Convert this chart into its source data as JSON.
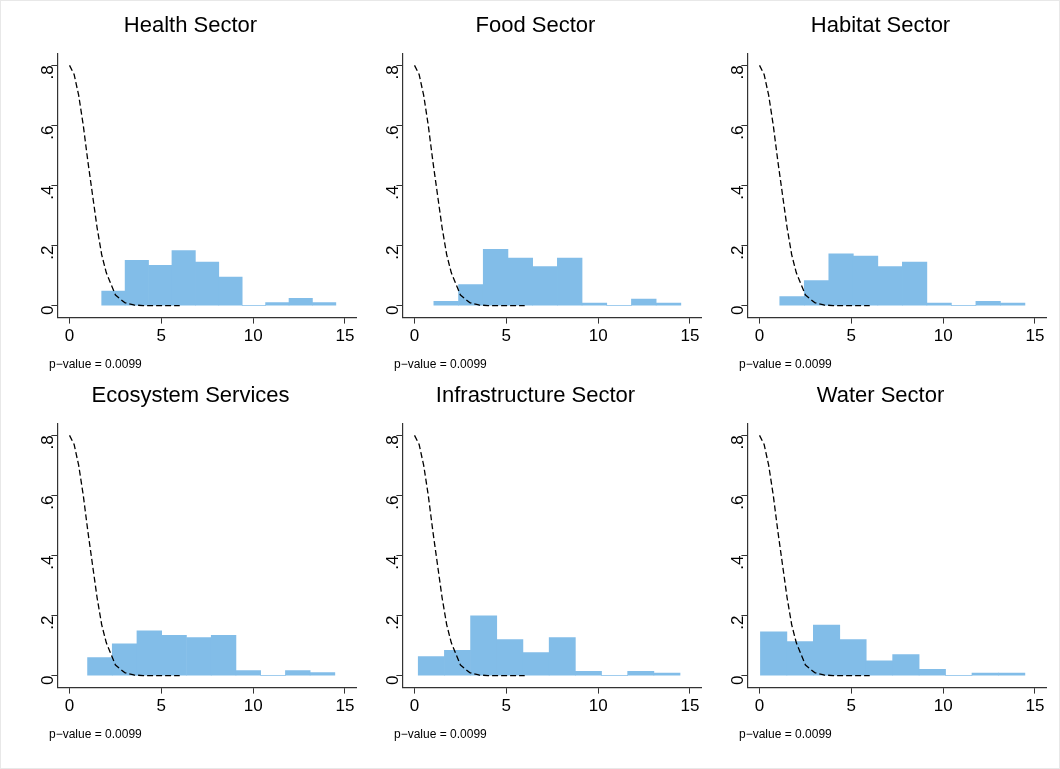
{
  "chart_data": [
    {
      "type": "histogram",
      "title": "Health Sector",
      "bins": [
        1.75,
        3.03,
        4.3,
        5.58,
        6.85,
        8.13,
        9.4,
        10.68,
        11.95,
        13.23,
        14.5
      ],
      "values": [
        0.048,
        0.151,
        0.134,
        0.183,
        0.145,
        0.095,
        0,
        0.01,
        0.024,
        0.01
      ],
      "color": "#82bde8",
      "series": [
        {
          "type": "line",
          "color": "#000000",
          "line_style": "dashed",
          "x": [
            0,
            0.25,
            0.5,
            0.75,
            1,
            1.25,
            1.5,
            1.75,
            2,
            2.5,
            3,
            3.5,
            4,
            5,
            6
          ],
          "values": [
            0.8,
            0.77,
            0.7,
            0.6,
            0.48,
            0.37,
            0.26,
            0.17,
            0.11,
            0.035,
            0.01,
            0.002,
            0,
            0,
            0
          ]
        }
      ],
      "annotations": [
        "p−value = 0.0099"
      ],
      "xlim": [
        -0.66,
        15.6
      ],
      "ylim": [
        -0.04,
        0.84
      ],
      "xticks": [
        0,
        5,
        10,
        15
      ],
      "yticks": [
        {
          "value": 0,
          "label": "0"
        },
        {
          "value": 0.2,
          "label": ".2"
        },
        {
          "value": 0.4,
          "label": ".4"
        },
        {
          "value": 0.6,
          "label": ".6"
        },
        {
          "value": 0.8,
          "label": ".8"
        }
      ]
    },
    {
      "type": "histogram",
      "title": "Food Sector",
      "bins": [
        1.05,
        2.4,
        3.74,
        5.09,
        6.43,
        7.78,
        9.12,
        10.47,
        11.81,
        13.16,
        14.5
      ],
      "values": [
        0.014,
        0.07,
        0.187,
        0.158,
        0.13,
        0.158,
        0.008,
        0,
        0.022,
        0.008
      ],
      "color": "#82bde8",
      "series": [
        {
          "type": "line",
          "color": "#000000",
          "line_style": "dashed",
          "x": [
            0,
            0.25,
            0.5,
            0.75,
            1,
            1.25,
            1.5,
            1.75,
            2,
            2.5,
            3,
            3.5,
            4,
            5,
            6
          ],
          "values": [
            0.8,
            0.77,
            0.7,
            0.6,
            0.48,
            0.37,
            0.26,
            0.17,
            0.11,
            0.035,
            0.01,
            0.002,
            0,
            0,
            0
          ]
        }
      ],
      "annotations": [
        "p−value = 0.0099"
      ],
      "xlim": [
        -0.66,
        15.6
      ],
      "ylim": [
        -0.04,
        0.84
      ],
      "xticks": [
        0,
        5,
        10,
        15
      ],
      "yticks": [
        {
          "value": 0,
          "label": "0"
        },
        {
          "value": 0.2,
          "label": ".2"
        },
        {
          "value": 0.4,
          "label": ".4"
        },
        {
          "value": 0.6,
          "label": ".6"
        },
        {
          "value": 0.8,
          "label": ".8"
        }
      ]
    },
    {
      "type": "histogram",
      "title": "Habitat Sector",
      "bins": [
        1.1,
        2.44,
        3.77,
        5.11,
        6.44,
        7.78,
        9.11,
        10.45,
        11.78,
        13.12,
        14.45
      ],
      "values": [
        0.03,
        0.083,
        0.172,
        0.165,
        0.13,
        0.145,
        0.008,
        0,
        0.014,
        0.008
      ],
      "color": "#82bde8",
      "series": [
        {
          "type": "line",
          "color": "#000000",
          "line_style": "dashed",
          "x": [
            0,
            0.25,
            0.5,
            0.75,
            1,
            1.25,
            1.5,
            1.75,
            2,
            2.5,
            3,
            3.5,
            4,
            5,
            6
          ],
          "values": [
            0.8,
            0.77,
            0.7,
            0.6,
            0.48,
            0.37,
            0.26,
            0.17,
            0.11,
            0.035,
            0.01,
            0.002,
            0,
            0,
            0
          ]
        }
      ],
      "annotations": [
        "p−value = 0.0099"
      ],
      "xlim": [
        -0.66,
        15.6
      ],
      "ylim": [
        -0.04,
        0.84
      ],
      "xticks": [
        0,
        5,
        10,
        15
      ],
      "yticks": [
        {
          "value": 0,
          "label": "0"
        },
        {
          "value": 0.2,
          "label": ".2"
        },
        {
          "value": 0.4,
          "label": ".4"
        },
        {
          "value": 0.6,
          "label": ".6"
        },
        {
          "value": 0.8,
          "label": ".8"
        }
      ]
    },
    {
      "type": "histogram",
      "title": "Ecosystem Services",
      "bins": [
        0.98,
        2.33,
        3.67,
        5.02,
        6.37,
        7.72,
        9.06,
        10.41,
        11.76,
        13.1,
        14.45
      ],
      "values": [
        0.06,
        0.106,
        0.149,
        0.134,
        0.127,
        0.134,
        0.017,
        0,
        0.017,
        0.01
      ],
      "color": "#82bde8",
      "series": [
        {
          "type": "line",
          "color": "#000000",
          "line_style": "dashed",
          "x": [
            0,
            0.25,
            0.5,
            0.75,
            1,
            1.25,
            1.5,
            1.75,
            2,
            2.5,
            3,
            3.5,
            4,
            5,
            6
          ],
          "values": [
            0.8,
            0.77,
            0.7,
            0.6,
            0.48,
            0.37,
            0.26,
            0.17,
            0.11,
            0.035,
            0.01,
            0.002,
            0,
            0,
            0
          ]
        }
      ],
      "annotations": [
        "p−value = 0.0099"
      ],
      "xlim": [
        -0.66,
        15.6
      ],
      "ylim": [
        -0.04,
        0.84
      ],
      "xticks": [
        0,
        5,
        10,
        15
      ],
      "yticks": [
        {
          "value": 0,
          "label": "0"
        },
        {
          "value": 0.2,
          "label": ".2"
        },
        {
          "value": 0.4,
          "label": ".4"
        },
        {
          "value": 0.6,
          "label": ".6"
        },
        {
          "value": 0.8,
          "label": ".8"
        }
      ]
    },
    {
      "type": "histogram",
      "title": "Infrastructure Sector",
      "bins": [
        0.2,
        1.63,
        3.05,
        4.48,
        5.9,
        7.33,
        8.76,
        10.18,
        11.61,
        13.03,
        14.46
      ],
      "values": [
        0.063,
        0.084,
        0.199,
        0.12,
        0.077,
        0.127,
        0.014,
        0,
        0.014,
        0.008
      ],
      "color": "#82bde8",
      "series": [
        {
          "type": "line",
          "color": "#000000",
          "line_style": "dashed",
          "x": [
            0,
            0.25,
            0.5,
            0.75,
            1,
            1.25,
            1.5,
            1.75,
            2,
            2.5,
            3,
            3.5,
            4,
            5,
            6
          ],
          "values": [
            0.8,
            0.77,
            0.7,
            0.6,
            0.48,
            0.37,
            0.26,
            0.17,
            0.11,
            0.035,
            0.01,
            0.002,
            0,
            0,
            0
          ]
        }
      ],
      "annotations": [
        "p−value = 0.0099"
      ],
      "xlim": [
        -0.66,
        15.6
      ],
      "ylim": [
        -0.04,
        0.84
      ],
      "xticks": [
        0,
        5,
        10,
        15
      ],
      "yticks": [
        {
          "value": 0,
          "label": "0"
        },
        {
          "value": 0.2,
          "label": ".2"
        },
        {
          "value": 0.4,
          "label": ".4"
        },
        {
          "value": 0.6,
          "label": ".6"
        },
        {
          "value": 0.8,
          "label": ".8"
        }
      ]
    },
    {
      "type": "histogram",
      "title": "Water Sector",
      "bins": [
        0.05,
        1.49,
        2.93,
        4.37,
        5.81,
        7.25,
        8.69,
        10.13,
        11.57,
        13.01,
        14.45
      ],
      "values": [
        0.146,
        0.113,
        0.168,
        0.12,
        0.049,
        0.07,
        0.021,
        0,
        0.008,
        0.008
      ],
      "color": "#82bde8",
      "series": [
        {
          "type": "line",
          "color": "#000000",
          "line_style": "dashed",
          "x": [
            0,
            0.25,
            0.5,
            0.75,
            1,
            1.25,
            1.5,
            1.75,
            2,
            2.5,
            3,
            3.5,
            4,
            5,
            6
          ],
          "values": [
            0.8,
            0.77,
            0.7,
            0.6,
            0.48,
            0.37,
            0.26,
            0.17,
            0.11,
            0.035,
            0.01,
            0.002,
            0,
            0,
            0
          ]
        }
      ],
      "annotations": [
        "p−value = 0.0099"
      ],
      "xlim": [
        -0.66,
        15.6
      ],
      "ylim": [
        -0.04,
        0.84
      ],
      "xticks": [
        0,
        5,
        10,
        15
      ],
      "yticks": [
        {
          "value": 0,
          "label": "0"
        },
        {
          "value": 0.2,
          "label": ".2"
        },
        {
          "value": 0.4,
          "label": ".4"
        },
        {
          "value": 0.6,
          "label": ".6"
        },
        {
          "value": 0.8,
          "label": ".8"
        }
      ]
    }
  ]
}
